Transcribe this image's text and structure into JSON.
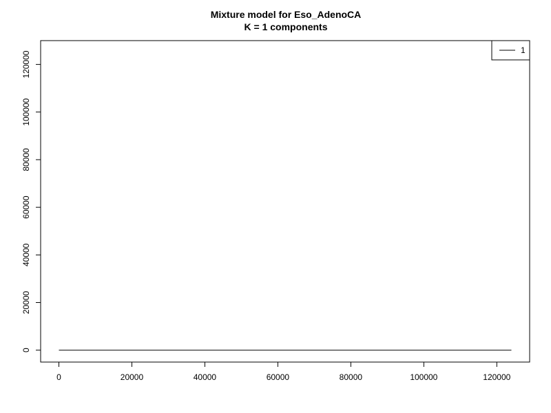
{
  "chart_data": {
    "type": "line",
    "title": [
      "Mixture model for Eso_AdenoCA",
      "K = 1 components"
    ],
    "xlabel": "",
    "ylabel": "",
    "xlim": [
      -5000,
      129000
    ],
    "ylim": [
      -5000,
      130000
    ],
    "x_ticks": [
      0,
      20000,
      40000,
      60000,
      80000,
      100000,
      120000
    ],
    "y_ticks": [
      0,
      20000,
      40000,
      60000,
      80000,
      100000,
      120000
    ],
    "grid": false,
    "legend": {
      "position": "top-right",
      "entries": [
        "1"
      ]
    },
    "series": [
      {
        "name": "1",
        "color": "#000000",
        "x": [
          0,
          124000
        ],
        "y": [
          0,
          0
        ]
      }
    ]
  }
}
